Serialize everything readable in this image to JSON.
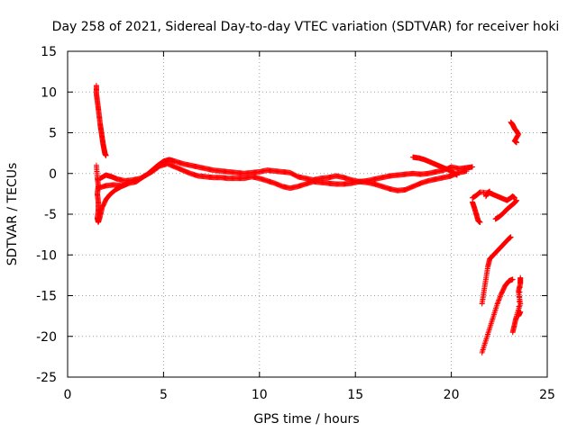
{
  "chart_data": {
    "type": "scatter",
    "title": "Day 258 of 2021, Sidereal Day-to-day VTEC variation (SDTVAR) for receiver hoki",
    "xlabel": "GPS time / hours",
    "ylabel": "SDTVAR / TECUs",
    "xlim": [
      0,
      25
    ],
    "ylim": [
      -25,
      15
    ],
    "xticks": [
      "0",
      "5",
      "10",
      "15",
      "20",
      "25"
    ],
    "yticks": [
      "-25",
      "-20",
      "-15",
      "-10",
      "-5",
      "0",
      "5",
      "10",
      "15"
    ],
    "grid": true,
    "marker": "+",
    "color": "#ff0000",
    "series": [
      {
        "name": "early spike",
        "points": [
          [
            1.5,
            10.8
          ],
          [
            1.5,
            9.8
          ],
          [
            1.55,
            8.9
          ],
          [
            1.6,
            8.0
          ],
          [
            1.65,
            7.0
          ],
          [
            1.7,
            6.0
          ],
          [
            1.75,
            5.2
          ],
          [
            1.8,
            4.4
          ],
          [
            1.85,
            3.6
          ],
          [
            1.9,
            3.0
          ],
          [
            1.95,
            2.4
          ],
          [
            2.0,
            2.2
          ]
        ]
      },
      {
        "name": "early dip",
        "points": [
          [
            1.5,
            1.0
          ],
          [
            1.55,
            -0.5
          ],
          [
            1.6,
            -1.5
          ],
          [
            1.55,
            -2.5
          ],
          [
            1.6,
            -3.5
          ],
          [
            1.6,
            -4.5
          ],
          [
            1.55,
            -5.5
          ],
          [
            1.6,
            -6.0
          ],
          [
            1.7,
            -5.2
          ],
          [
            1.8,
            -4.2
          ],
          [
            2.0,
            -3.2
          ],
          [
            2.2,
            -2.6
          ],
          [
            2.5,
            -2.0
          ],
          [
            2.8,
            -1.6
          ],
          [
            3.1,
            -1.3
          ]
        ]
      },
      {
        "name": "main track upper",
        "points": [
          [
            1.7,
            -0.6
          ],
          [
            2.0,
            -0.2
          ],
          [
            2.3,
            -0.4
          ],
          [
            2.6,
            -0.7
          ],
          [
            3.0,
            -0.9
          ],
          [
            3.4,
            -0.8
          ],
          [
            3.8,
            -0.6
          ],
          [
            4.1,
            -0.2
          ],
          [
            4.4,
            0.4
          ],
          [
            4.7,
            1.0
          ],
          [
            5.0,
            1.5
          ],
          [
            5.3,
            1.7
          ],
          [
            5.6,
            1.5
          ],
          [
            6.0,
            1.2
          ],
          [
            6.4,
            1.0
          ],
          [
            6.8,
            0.8
          ],
          [
            7.2,
            0.6
          ],
          [
            7.6,
            0.4
          ],
          [
            8.0,
            0.3
          ],
          [
            8.4,
            0.2
          ],
          [
            8.8,
            0.1
          ],
          [
            9.2,
            0.0
          ],
          [
            9.6,
            0.1
          ],
          [
            10.0,
            0.2
          ],
          [
            10.4,
            0.4
          ],
          [
            10.8,
            0.3
          ],
          [
            11.2,
            0.2
          ],
          [
            11.6,
            0.1
          ],
          [
            12.0,
            -0.4
          ],
          [
            12.4,
            -0.6
          ],
          [
            12.8,
            -0.8
          ],
          [
            13.2,
            -0.6
          ],
          [
            13.6,
            -0.5
          ],
          [
            14.0,
            -0.3
          ],
          [
            14.4,
            -0.5
          ],
          [
            14.8,
            -0.8
          ],
          [
            15.2,
            -1.0
          ],
          [
            15.6,
            -0.9
          ],
          [
            16.0,
            -0.7
          ],
          [
            16.4,
            -0.5
          ],
          [
            16.8,
            -0.3
          ],
          [
            17.2,
            -0.2
          ],
          [
            17.6,
            -0.1
          ],
          [
            18.0,
            0.0
          ],
          [
            18.4,
            -0.1
          ],
          [
            18.8,
            0.0
          ],
          [
            19.2,
            0.2
          ],
          [
            19.6,
            0.4
          ],
          [
            20.0,
            0.8
          ],
          [
            20.4,
            0.6
          ],
          [
            20.8,
            0.7
          ],
          [
            21.1,
            0.8
          ]
        ]
      },
      {
        "name": "main track lower",
        "points": [
          [
            1.6,
            -1.8
          ],
          [
            2.0,
            -1.5
          ],
          [
            2.4,
            -1.4
          ],
          [
            2.8,
            -1.5
          ],
          [
            3.2,
            -1.2
          ],
          [
            3.6,
            -1.0
          ],
          [
            4.0,
            -0.3
          ],
          [
            4.4,
            0.2
          ],
          [
            4.8,
            0.9
          ],
          [
            5.2,
            1.2
          ],
          [
            5.6,
            0.8
          ],
          [
            6.0,
            0.4
          ],
          [
            6.4,
            0.0
          ],
          [
            6.8,
            -0.3
          ],
          [
            7.2,
            -0.4
          ],
          [
            7.6,
            -0.5
          ],
          [
            8.0,
            -0.5
          ],
          [
            8.4,
            -0.6
          ],
          [
            8.8,
            -0.6
          ],
          [
            9.2,
            -0.6
          ],
          [
            9.6,
            -0.4
          ],
          [
            10.0,
            -0.6
          ],
          [
            10.4,
            -0.9
          ],
          [
            10.8,
            -1.2
          ],
          [
            11.2,
            -1.6
          ],
          [
            11.6,
            -1.8
          ],
          [
            12.0,
            -1.6
          ],
          [
            12.4,
            -1.3
          ],
          [
            12.8,
            -1.0
          ],
          [
            13.2,
            -1.1
          ],
          [
            13.6,
            -1.2
          ],
          [
            14.0,
            -1.3
          ],
          [
            14.4,
            -1.3
          ],
          [
            14.8,
            -1.2
          ],
          [
            15.2,
            -1.0
          ],
          [
            15.6,
            -1.1
          ],
          [
            16.0,
            -1.3
          ],
          [
            16.4,
            -1.6
          ],
          [
            16.8,
            -1.9
          ],
          [
            17.2,
            -2.1
          ],
          [
            17.6,
            -2.0
          ],
          [
            18.0,
            -1.6
          ],
          [
            18.4,
            -1.2
          ],
          [
            18.8,
            -0.9
          ],
          [
            19.2,
            -0.7
          ],
          [
            19.6,
            -0.5
          ],
          [
            20.0,
            -0.3
          ],
          [
            20.4,
            0.1
          ],
          [
            20.8,
            0.3
          ]
        ]
      },
      {
        "name": "hump",
        "points": [
          [
            18.0,
            2.0
          ],
          [
            18.3,
            1.9
          ],
          [
            18.6,
            1.7
          ],
          [
            18.9,
            1.4
          ],
          [
            19.2,
            1.1
          ],
          [
            19.5,
            0.8
          ],
          [
            19.8,
            0.5
          ],
          [
            20.1,
            0.1
          ],
          [
            20.3,
            -0.2
          ]
        ]
      },
      {
        "name": "late upper",
        "points": [
          [
            21.1,
            -3.0
          ],
          [
            21.3,
            -2.7
          ],
          [
            21.5,
            -2.3
          ],
          [
            22.0,
            -2.4
          ],
          [
            22.3,
            -2.7
          ],
          [
            22.6,
            -3.0
          ],
          [
            22.9,
            -3.3
          ],
          [
            23.1,
            -3.0
          ],
          [
            23.2,
            -2.8
          ],
          [
            23.3,
            -3.0
          ]
        ]
      },
      {
        "name": "late upper 2",
        "points": [
          [
            21.8,
            -2.8
          ],
          [
            21.9,
            -2.4
          ],
          [
            22.0,
            -2.2
          ]
        ]
      },
      {
        "name": "late dip",
        "points": [
          [
            21.1,
            -3.5
          ],
          [
            21.2,
            -4.2
          ],
          [
            21.3,
            -5.0
          ],
          [
            21.4,
            -5.8
          ],
          [
            21.5,
            -6.0
          ]
        ]
      },
      {
        "name": "late slope",
        "points": [
          [
            22.3,
            -5.6
          ],
          [
            22.5,
            -5.3
          ],
          [
            22.7,
            -4.9
          ],
          [
            22.9,
            -4.4
          ],
          [
            23.1,
            -4.0
          ],
          [
            23.3,
            -3.6
          ],
          [
            23.4,
            -3.3
          ]
        ]
      },
      {
        "name": "late steep 1",
        "points": [
          [
            21.6,
            -16.0
          ],
          [
            21.7,
            -14.5
          ],
          [
            21.8,
            -13.0
          ],
          [
            21.9,
            -11.5
          ],
          [
            22.0,
            -10.5
          ],
          [
            22.2,
            -10.0
          ],
          [
            22.4,
            -9.5
          ],
          [
            22.6,
            -9.0
          ],
          [
            22.8,
            -8.5
          ],
          [
            23.0,
            -8.0
          ],
          [
            23.1,
            -7.8
          ]
        ]
      },
      {
        "name": "late steep 2",
        "points": [
          [
            21.6,
            -22.0
          ],
          [
            21.8,
            -20.5
          ],
          [
            22.0,
            -19.0
          ],
          [
            22.2,
            -17.5
          ],
          [
            22.4,
            -16.0
          ],
          [
            22.6,
            -14.8
          ],
          [
            22.8,
            -13.8
          ],
          [
            23.0,
            -13.2
          ],
          [
            23.2,
            -13.0
          ]
        ]
      },
      {
        "name": "late steep 3",
        "points": [
          [
            23.2,
            -19.5
          ],
          [
            23.3,
            -18.5
          ],
          [
            23.4,
            -17.5
          ],
          [
            23.6,
            -16.0
          ],
          [
            23.5,
            -14.5
          ],
          [
            23.6,
            -13.5
          ],
          [
            23.6,
            -12.8
          ],
          [
            23.5,
            -17.5
          ],
          [
            23.6,
            -17.0
          ]
        ]
      },
      {
        "name": "late high",
        "points": [
          [
            23.1,
            6.3
          ],
          [
            23.2,
            6.0
          ],
          [
            23.3,
            5.5
          ],
          [
            23.4,
            5.2
          ],
          [
            23.5,
            4.8
          ],
          [
            23.3,
            4.0
          ],
          [
            23.4,
            3.8
          ]
        ]
      }
    ]
  }
}
